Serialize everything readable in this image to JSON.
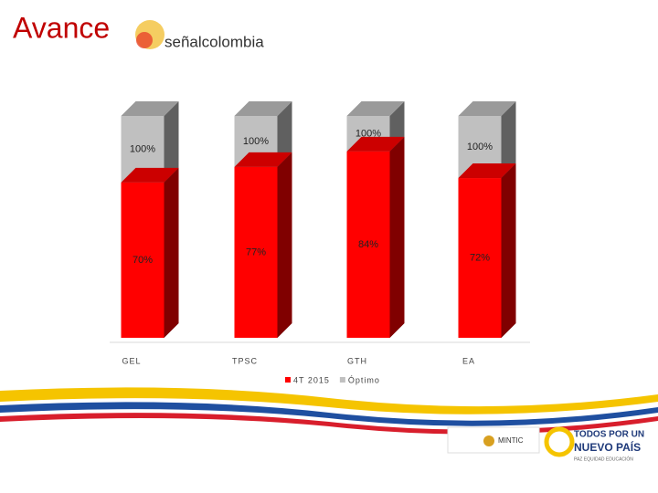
{
  "header": {
    "title": "Avance",
    "logo": "señalcolombia"
  },
  "chart_data": {
    "type": "bar",
    "overlap": true,
    "categories": [
      "GEL",
      "TPSC",
      "GTH",
      "EA"
    ],
    "series": [
      {
        "name": "Óptimo",
        "color": "#c0c0c0",
        "values": [
          100,
          100,
          100,
          100
        ],
        "value_labels": [
          "100%",
          "100%",
          "100%",
          "100%"
        ]
      },
      {
        "name": "4T 2015",
        "color": "#ff0000",
        "values": [
          70,
          77,
          84,
          72
        ],
        "value_labels": [
          "70%",
          "77%",
          "84%",
          "72%"
        ]
      }
    ]
  },
  "footer": {
    "ministry": "MINTIC",
    "slogan_1": "TODOS POR UN",
    "slogan_2": "NUEVO PAÍS",
    "slogan_3": "PAZ  EQUIDAD  EDUCACIÓN"
  }
}
